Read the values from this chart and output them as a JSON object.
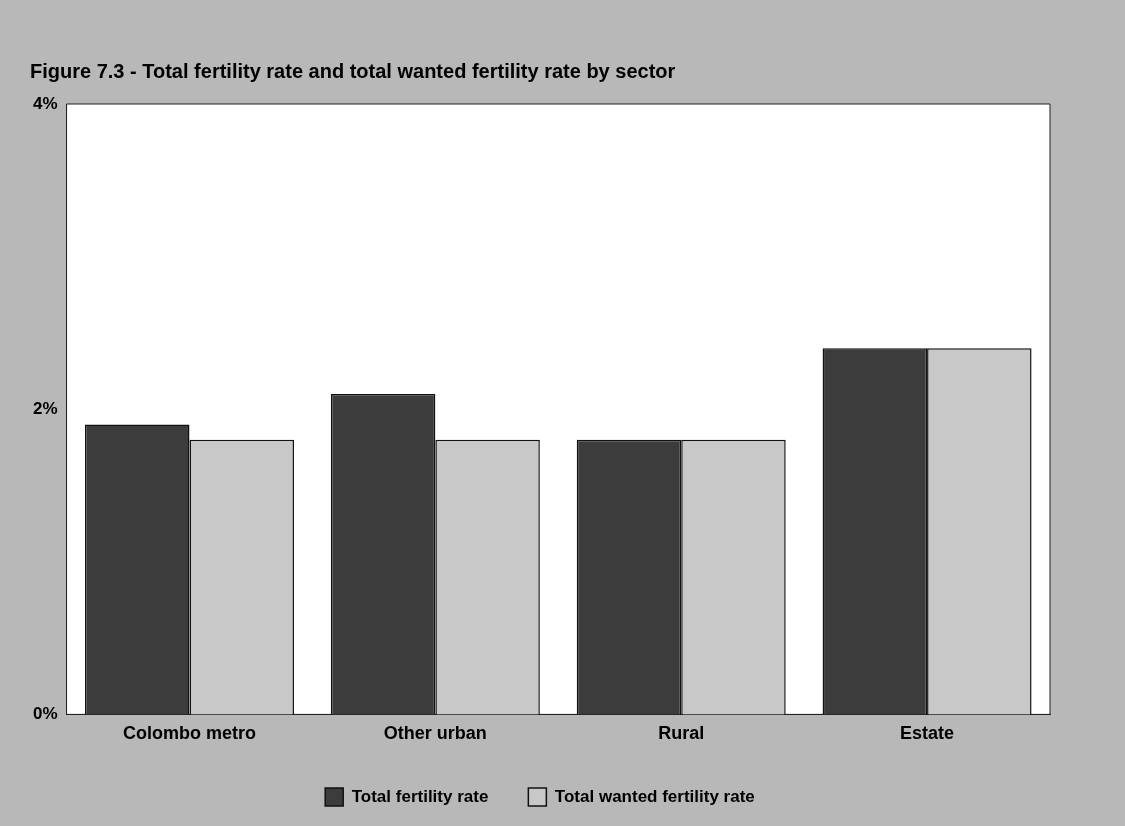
{
  "chart_data": {
    "type": "bar",
    "title": "Figure 7.3 - Total fertility rate and total wanted fertility rate by sector",
    "categories": [
      "Colombo metro",
      "Other urban",
      "Rural",
      "Estate"
    ],
    "series": [
      {
        "name": "Total fertility rate",
        "color": "#3c3c3c",
        "values": [
          1.9,
          2.1,
          1.8,
          2.4
        ]
      },
      {
        "name": "Total wanted fertility rate",
        "color": "#c8c8c8",
        "values": [
          1.8,
          1.8,
          1.8,
          2.4
        ]
      }
    ],
    "ylim": [
      0,
      4
    ],
    "yticks": [
      {
        "value": 0,
        "label": "0%"
      },
      {
        "value": 2,
        "label": "2%"
      },
      {
        "value": 4,
        "label": "4%"
      }
    ],
    "grid": false,
    "legend": "bottom"
  }
}
